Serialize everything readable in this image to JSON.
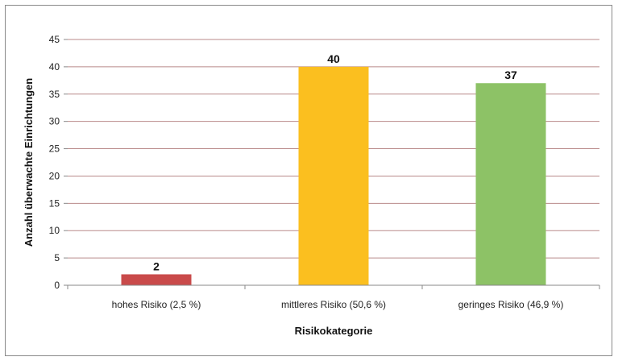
{
  "chart_data": {
    "type": "bar",
    "title": "",
    "xlabel": "Risikokategorie",
    "ylabel": "Anzahl überwachte Einrichtungen",
    "categories": [
      "hohes Risiko (2,5 %)",
      "mittleres Risiko (50,6 %)",
      "geringes Risiko (46,9 %)"
    ],
    "values": [
      2,
      40,
      37
    ],
    "data_labels": [
      "2",
      "40",
      "37"
    ],
    "colors": [
      "#c94a4a",
      "#fbbf1f",
      "#8dc266"
    ],
    "ylim": [
      0,
      45
    ],
    "yticks": [
      0,
      5,
      10,
      15,
      20,
      25,
      30,
      35,
      40,
      45
    ],
    "grid": true,
    "legend": "none"
  }
}
